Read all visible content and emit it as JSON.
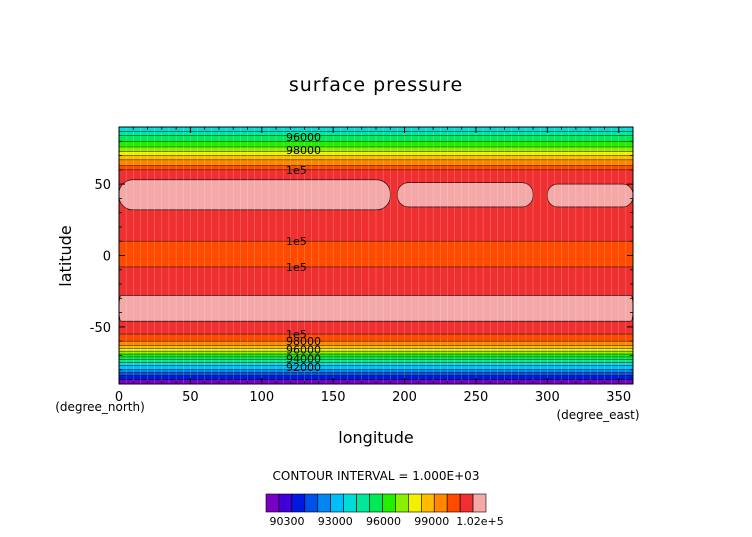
{
  "chart_data": {
    "type": "heatmap",
    "title": "surface pressure",
    "xlabel": "longitude",
    "ylabel": "latitude",
    "x_unit": "(degree_east)",
    "y_unit": "(degree_north)",
    "xlim": [
      0,
      360
    ],
    "ylim": [
      -90,
      90
    ],
    "x_ticks": [
      "0",
      "50",
      "100",
      "150",
      "200",
      "250",
      "300",
      "350"
    ],
    "y_ticks": [
      "50",
      "0",
      "-50"
    ],
    "contour_interval_text": "CONTOUR INTERVAL = 1.000E+03",
    "contour_labels": [
      "96000",
      "98000",
      "1e5",
      "1e5",
      "1e5",
      "1e5",
      "98000",
      "96000",
      "94000",
      "92000"
    ],
    "colorbar_labels": [
      "90300",
      "93000",
      "96000",
      "99000",
      "1.02e+5"
    ],
    "colorbar_colors": [
      "#7a00c4",
      "#3f00d8",
      "#0019e0",
      "#0051e8",
      "#0088f0",
      "#00bff8",
      "#00ddd8",
      "#00e89a",
      "#00ea55",
      "#22ee00",
      "#88f000",
      "#f0f000",
      "#ffbb00",
      "#ff8800",
      "#ff4a00",
      "#f03030",
      "#f4a8a8"
    ],
    "bands": [
      {
        "lat_top": 90,
        "lat_bottom": 87,
        "color": "#00ddd8"
      },
      {
        "lat_top": 87,
        "lat_bottom": 84,
        "color": "#00e89a"
      },
      {
        "lat_top": 84,
        "lat_bottom": 80,
        "color": "#00ea55"
      },
      {
        "lat_top": 80,
        "lat_bottom": 76,
        "color": "#22ee00"
      },
      {
        "lat_top": 76,
        "lat_bottom": 73,
        "color": "#88f000"
      },
      {
        "lat_top": 73,
        "lat_bottom": 70,
        "color": "#f0f000"
      },
      {
        "lat_top": 70,
        "lat_bottom": 67,
        "color": "#ffbb00"
      },
      {
        "lat_top": 67,
        "lat_bottom": 63,
        "color": "#ff8800"
      },
      {
        "lat_top": 63,
        "lat_bottom": 60,
        "color": "#ff4a00"
      },
      {
        "lat_top": 60,
        "lat_bottom": 10,
        "color": "#f03030"
      },
      {
        "lat_top": 10,
        "lat_bottom": -8,
        "color": "#ff4a00"
      },
      {
        "lat_top": -8,
        "lat_bottom": -55,
        "color": "#f03030"
      },
      {
        "lat_top": -55,
        "lat_bottom": -60,
        "color": "#ff4a00"
      },
      {
        "lat_top": -60,
        "lat_bottom": -63,
        "color": "#ff8800"
      },
      {
        "lat_top": -63,
        "lat_bottom": -65,
        "color": "#ffbb00"
      },
      {
        "lat_top": -65,
        "lat_bottom": -67,
        "color": "#f0f000"
      },
      {
        "lat_top": -67,
        "lat_bottom": -69,
        "color": "#88f000"
      },
      {
        "lat_top": -69,
        "lat_bottom": -71,
        "color": "#22ee00"
      },
      {
        "lat_top": -71,
        "lat_bottom": -73,
        "color": "#00ea55"
      },
      {
        "lat_top": -73,
        "lat_bottom": -75,
        "color": "#00e89a"
      },
      {
        "lat_top": -75,
        "lat_bottom": -77,
        "color": "#00ddd8"
      },
      {
        "lat_top": -77,
        "lat_bottom": -80,
        "color": "#00bff8"
      },
      {
        "lat_top": -80,
        "lat_bottom": -82,
        "color": "#0088f0"
      },
      {
        "lat_top": -82,
        "lat_bottom": -84,
        "color": "#0051e8"
      },
      {
        "lat_top": -84,
        "lat_bottom": -87,
        "color": "#0019e0"
      },
      {
        "lat_top": -87,
        "lat_bottom": -90,
        "color": "#7a00c4"
      }
    ],
    "high_pressure_regions": [
      {
        "lon": [
          0,
          190
        ],
        "lat": [
          32,
          53
        ],
        "color": "#f4a8a8"
      },
      {
        "lon": [
          195,
          290
        ],
        "lat": [
          34,
          51
        ],
        "color": "#f4a8a8"
      },
      {
        "lon": [
          300,
          360
        ],
        "lat": [
          34,
          50
        ],
        "color": "#f4a8a8"
      },
      {
        "lon": [
          0,
          360
        ],
        "lat": [
          -46,
          -28
        ],
        "color": "#f4a8a8"
      }
    ]
  }
}
